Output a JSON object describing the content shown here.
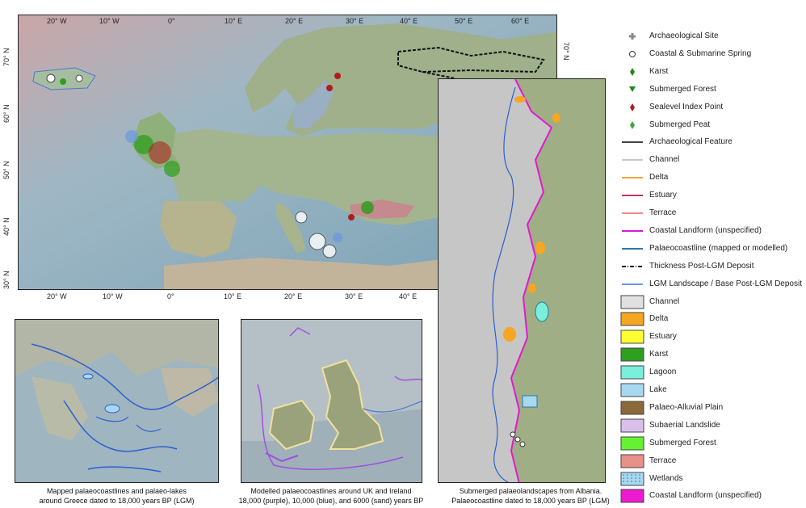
{
  "main_map": {
    "lon_ticks_top": [
      "20° W",
      "10° W",
      "0°",
      "10° E",
      "20° E",
      "30° E",
      "40° E",
      "50° E",
      "60° E"
    ],
    "lon_ticks_bottom": [
      "20° W",
      "10° W",
      "0°",
      "10° E",
      "20° E",
      "30° E",
      "40° E"
    ],
    "lat_ticks_left": [
      "70° N",
      "60° N",
      "50° N",
      "40° N",
      "30° N"
    ],
    "lat_tick_right": "70° N"
  },
  "captions": {
    "greece": [
      "Mapped palaeocoastlines and palaeo-lakes",
      "around Greece dated to 18,000 years BP (LGM)"
    ],
    "uk": [
      "Modelled palaeocoastlines around UK and Ireland",
      "18,000 (purple), 10,000 (blue), and 6000 (sand) years BP"
    ],
    "albania": [
      "Submerged palaeolandscapes from Albania.",
      "Palaeocoastline dated to 18,000 years BP (LGM)"
    ]
  },
  "legend": {
    "points": [
      {
        "label": "Archaeological Site",
        "icon": "cross-icon",
        "color": "#8a8a8a"
      },
      {
        "label": "Coastal & Submarine Spring",
        "icon": "circle-icon",
        "color": "#ffffff"
      },
      {
        "label": "Karst",
        "icon": "diamond-icon",
        "color": "#1e8a1e"
      },
      {
        "label": "Submerged Forest",
        "icon": "triangle-icon",
        "color": "#1e8a1e"
      },
      {
        "label": "Sealevel Index Point",
        "icon": "diamond-icon",
        "color": "#b01c1c"
      },
      {
        "label": "Submerged Peat",
        "icon": "diamond-icon",
        "color": "#3aa83a"
      }
    ],
    "lines": [
      {
        "label": "Archaeological Feature",
        "color": "#444444",
        "style": "solid"
      },
      {
        "label": "Channel",
        "color": "#c8c8c8",
        "style": "solid"
      },
      {
        "label": "Delta",
        "color": "#f2a13c",
        "style": "solid"
      },
      {
        "label": "Estuary",
        "color": "#c0345a",
        "style": "solid"
      },
      {
        "label": "Terrace",
        "color": "#f28a8a",
        "style": "solid"
      },
      {
        "label": "Coastal Landform (unspecified)",
        "color": "#d81ad8",
        "style": "solid"
      },
      {
        "label": "Palaeocoastline (mapped or modelled)",
        "color": "#2a7a9a",
        "style": "solid"
      },
      {
        "label": "Thickness Post-LGM Deposit",
        "color": "#222222",
        "style": "dashdot"
      },
      {
        "label": "LGM Landscape / Base Post-LGM Deposit",
        "color": "#6a9ae0",
        "style": "solid"
      }
    ],
    "polygons": [
      {
        "label": "Channel",
        "color": "#e0e0e0"
      },
      {
        "label": "Delta",
        "color": "#f5a623"
      },
      {
        "label": "Estuary",
        "color": "#ffff33"
      },
      {
        "label": "Karst",
        "color": "#2e9e1e"
      },
      {
        "label": "Lagoon",
        "color": "#7af0dc"
      },
      {
        "label": "Lake",
        "color": "#a8d8f0"
      },
      {
        "label": "Palaeo-Alluvial Plain",
        "color": "#8a6a3a"
      },
      {
        "label": "Subaerial Landslide",
        "color": "#d8c0ea"
      },
      {
        "label": "Submerged Forest",
        "color": "#66f233"
      },
      {
        "label": "Terrace",
        "color": "#e8908a"
      },
      {
        "label": "Wetlands",
        "color": "#a8d8f0",
        "pattern": "dots"
      },
      {
        "label": "Coastal Landform (unspecified)",
        "color": "#ee1ad0"
      }
    ]
  }
}
